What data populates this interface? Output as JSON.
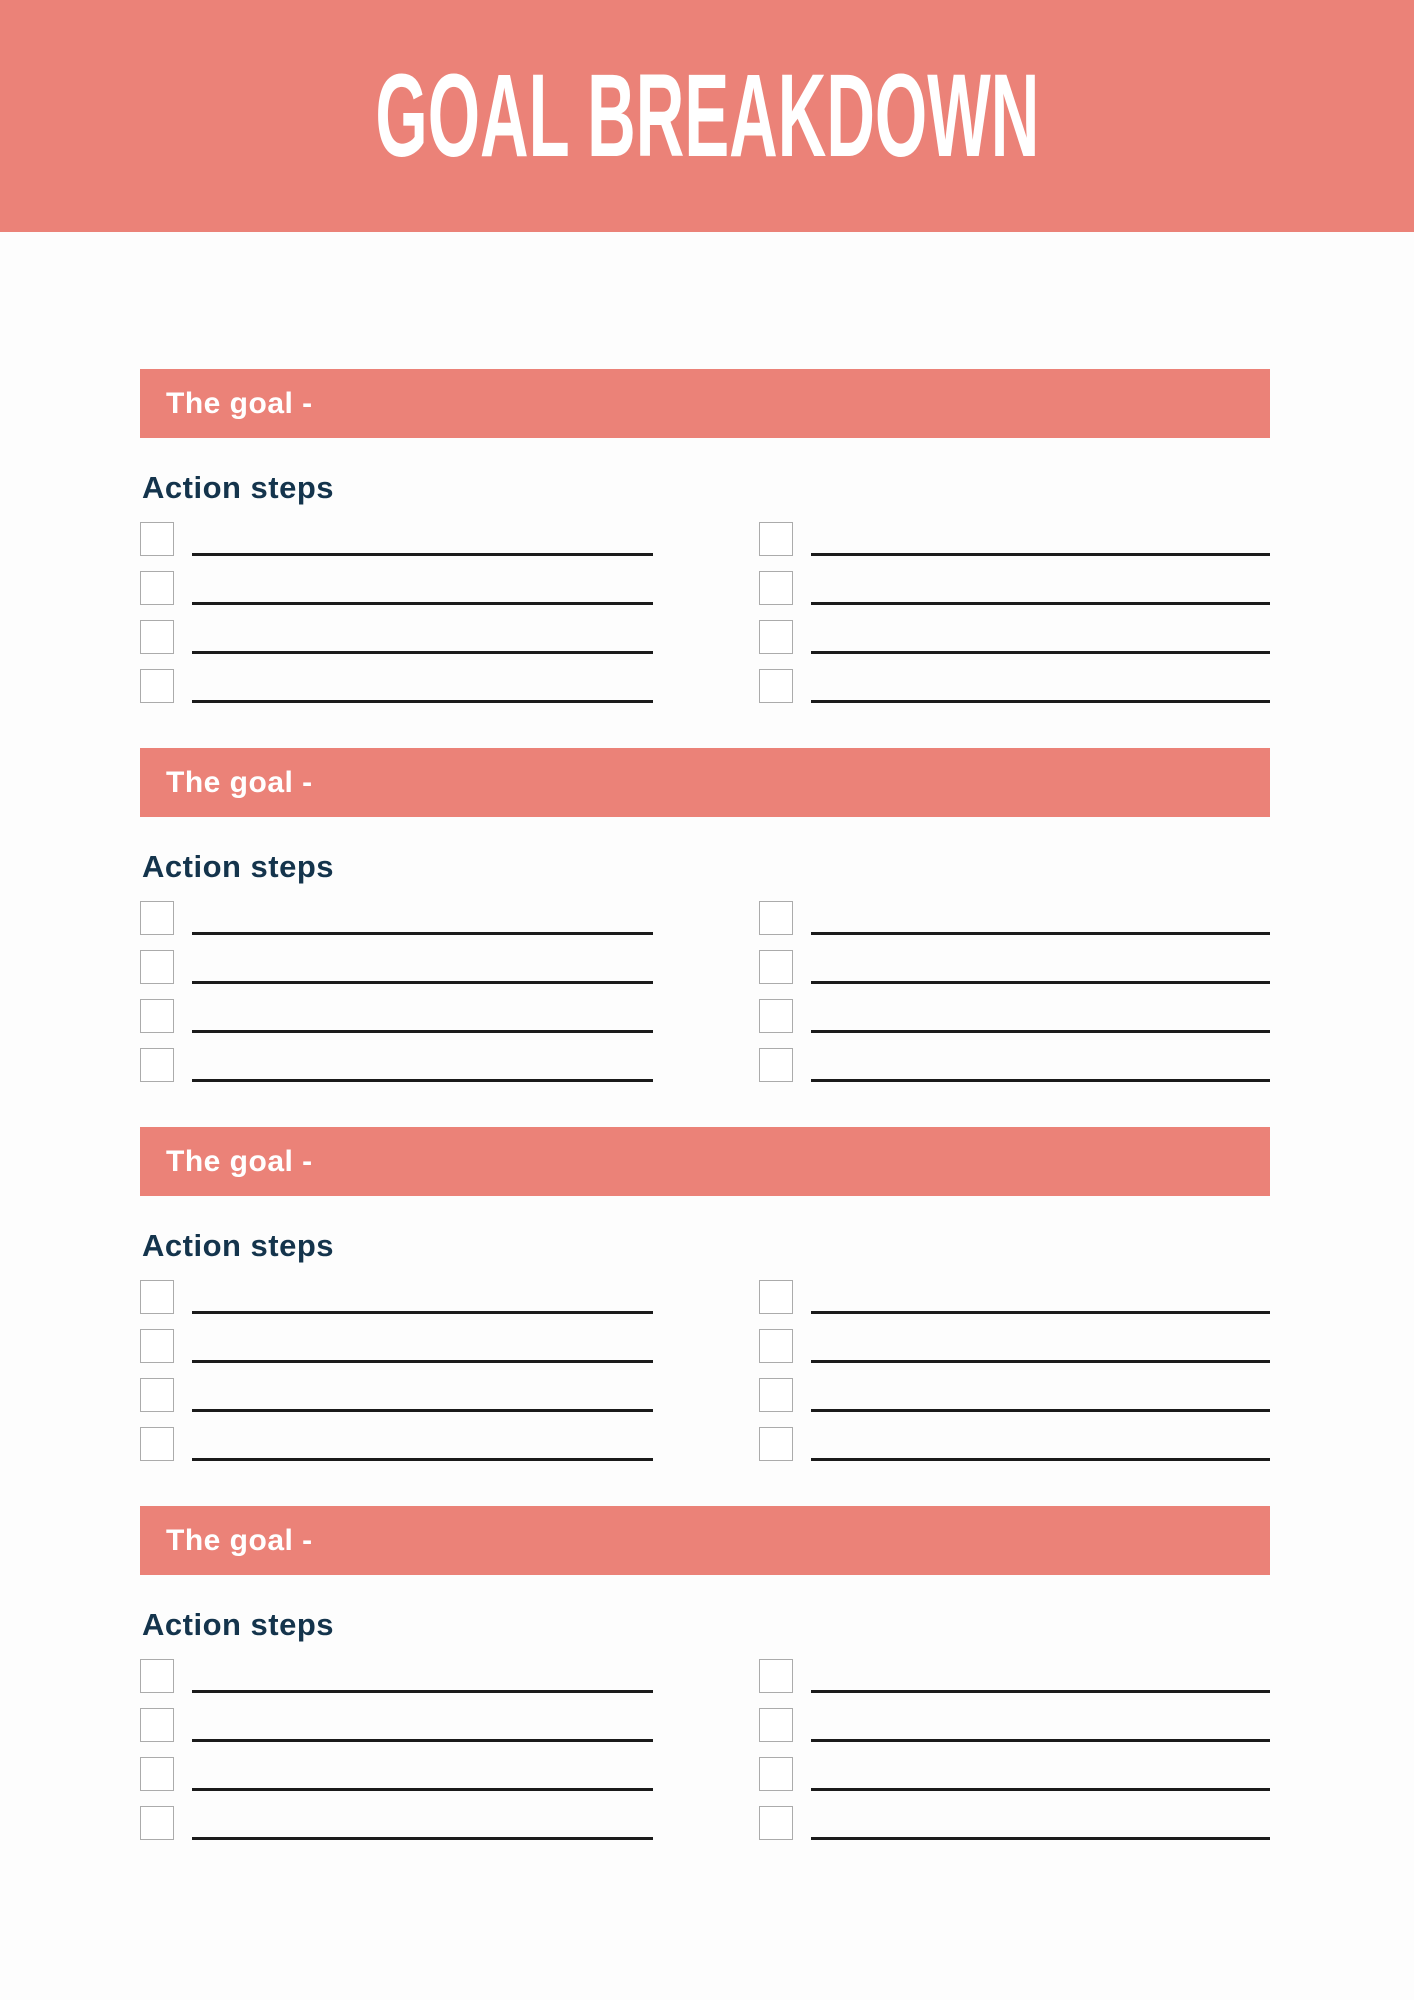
{
  "page": {
    "title": "GOAL BREAKDOWN"
  },
  "theme": {
    "header_background": "#EB8278",
    "goal_bar_background": "#EB8278",
    "title_color": "#FFFFFF",
    "heading_color": "#14344C",
    "goal_label_color": "#FFFFFF",
    "write_line_color": "#1B1B1B",
    "checkbox_border_color": "#ABABAB",
    "page_background": "#FDFDFD"
  },
  "sections": [
    {
      "goal_label": "The goal -",
      "steps_label": "Action steps",
      "columns": 2,
      "action_rows_per_column": 4
    },
    {
      "goal_label": "The goal -",
      "steps_label": "Action steps",
      "columns": 2,
      "action_rows_per_column": 4
    },
    {
      "goal_label": "The goal -",
      "steps_label": "Action steps",
      "columns": 2,
      "action_rows_per_column": 4
    },
    {
      "goal_label": "The goal -",
      "steps_label": "Action steps",
      "columns": 2,
      "action_rows_per_column": 4
    }
  ]
}
